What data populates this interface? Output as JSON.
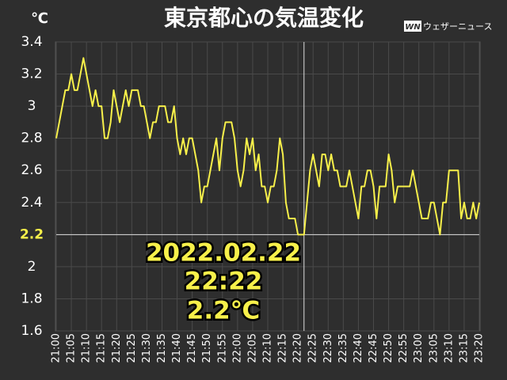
{
  "chart_data": {
    "type": "line",
    "title": "東京都心の気温変化",
    "y_unit": "℃",
    "logo_mark": "WN",
    "logo": "ウェザーニュース",
    "categories": [
      "21:00",
      null,
      null,
      null,
      null,
      "21:05",
      null,
      null,
      null,
      null,
      "21:10",
      null,
      null,
      null,
      null,
      "21:15",
      null,
      null,
      null,
      null,
      "21:20",
      null,
      null,
      null,
      null,
      "21:25",
      null,
      null,
      null,
      null,
      "21:30",
      null,
      null,
      null,
      null,
      "21:35",
      null,
      null,
      null,
      null,
      "21:40",
      null,
      null,
      null,
      null,
      "21:45",
      null,
      null,
      null,
      null,
      "21:50",
      null,
      null,
      null,
      null,
      "21:55",
      null,
      null,
      null,
      null,
      "22:00",
      null,
      null,
      null,
      null,
      "22:05",
      null,
      null,
      null,
      null,
      "22:10",
      null,
      null,
      null,
      null,
      "22:15",
      null,
      null,
      null,
      null,
      "22:20",
      null,
      null,
      null,
      null,
      "22:25",
      null,
      null,
      null,
      null,
      "22:30",
      null,
      null,
      null,
      null,
      "22:35",
      null,
      null,
      null,
      null,
      "22:40",
      null,
      null,
      null,
      null,
      "22:45",
      null,
      null,
      null,
      null,
      "22:50",
      null,
      null,
      null,
      null,
      "22:55",
      null,
      null,
      null,
      null,
      "23:00",
      null,
      null,
      null,
      null,
      "23:05",
      null,
      null,
      null,
      null,
      "23:10",
      null,
      null,
      null,
      null,
      "23:15",
      null,
      null,
      null,
      null,
      "23:20"
    ],
    "series": [
      {
        "name": "気温",
        "color": "#f7f04a",
        "values": [
          2.8,
          2.9,
          3.0,
          3.1,
          3.1,
          3.2,
          3.1,
          3.1,
          3.2,
          3.3,
          3.2,
          3.1,
          3.0,
          3.1,
          3.0,
          3.0,
          2.8,
          2.8,
          2.9,
          3.1,
          3.0,
          2.9,
          3.0,
          3.1,
          3.0,
          3.1,
          3.1,
          3.1,
          3.0,
          3.0,
          2.9,
          2.8,
          2.9,
          2.9,
          3.0,
          3.0,
          3.0,
          2.9,
          2.9,
          3.0,
          2.8,
          2.7,
          2.8,
          2.7,
          2.8,
          2.8,
          2.7,
          2.6,
          2.4,
          2.5,
          2.5,
          2.6,
          2.7,
          2.8,
          2.6,
          2.8,
          2.9,
          2.9,
          2.9,
          2.8,
          2.6,
          2.5,
          2.6,
          2.8,
          2.7,
          2.8,
          2.6,
          2.7,
          2.5,
          2.5,
          2.4,
          2.5,
          2.5,
          2.6,
          2.8,
          2.7,
          2.4,
          2.3,
          2.3,
          2.3,
          2.2,
          2.2,
          2.2,
          2.4,
          2.6,
          2.7,
          2.6,
          2.5,
          2.7,
          2.7,
          2.6,
          2.7,
          2.6,
          2.6,
          2.5,
          2.5,
          2.5,
          2.6,
          2.5,
          2.4,
          2.3,
          2.5,
          2.5,
          2.6,
          2.6,
          2.5,
          2.3,
          2.5,
          2.5,
          2.5,
          2.7,
          2.6,
          2.4,
          2.5,
          2.5,
          2.5,
          2.5,
          2.5,
          2.6,
          2.5,
          2.4,
          2.3,
          2.3,
          2.3,
          2.4,
          2.4,
          2.3,
          2.2,
          2.4,
          2.4,
          2.6,
          2.6,
          2.6,
          2.6,
          2.3,
          2.4,
          2.3,
          2.3,
          2.4,
          2.3,
          2.4
        ]
      }
    ],
    "ylim": [
      1.6,
      3.4
    ],
    "yticks": [
      1.6,
      1.8,
      2,
      2.2,
      2.4,
      2.6,
      2.8,
      3,
      3.2,
      3.4
    ],
    "grid": true,
    "highlight_y": 2.2,
    "annotation": {
      "date": "2022.02.22",
      "time": "22:22",
      "value_label": "2.2℃"
    }
  }
}
